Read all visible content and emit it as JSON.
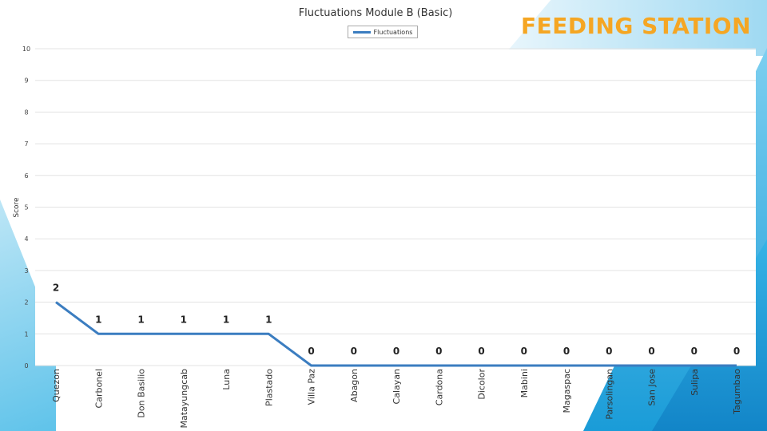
{
  "header": {
    "title": "Fluctuations Module B (Basic)",
    "banner": "FEEDING STATION"
  },
  "legend": {
    "label": "Fluctuations"
  },
  "colors": {
    "line": "#3b7dc0",
    "banner": "#f5a623",
    "accent": "#29abe2"
  },
  "chart_data": {
    "type": "line",
    "title": "Fluctuations Module B (Basic)",
    "xlabel": "",
    "ylabel": "Score",
    "ylim": [
      0,
      10
    ],
    "yticks": [
      0,
      1,
      2,
      3,
      4,
      5,
      6,
      7,
      8,
      9,
      10
    ],
    "categories": [
      "Quezon",
      "Carbonel",
      "Don Basilio",
      "Matayungcab",
      "Luna",
      "Plastado",
      "Villa Paz",
      "Abagon",
      "Calayan",
      "Cardona",
      "Dicolor",
      "Mabini",
      "Magaspac",
      "Parsolingan",
      "San Jose",
      "Sulipa",
      "Tagumbao"
    ],
    "series": [
      {
        "name": "Fluctuations",
        "values": [
          2,
          1,
          1,
          1,
          1,
          1,
          0,
          0,
          0,
          0,
          0,
          0,
          0,
          0,
          0,
          0,
          0
        ]
      }
    ],
    "legend": "top-center",
    "grid": true
  }
}
